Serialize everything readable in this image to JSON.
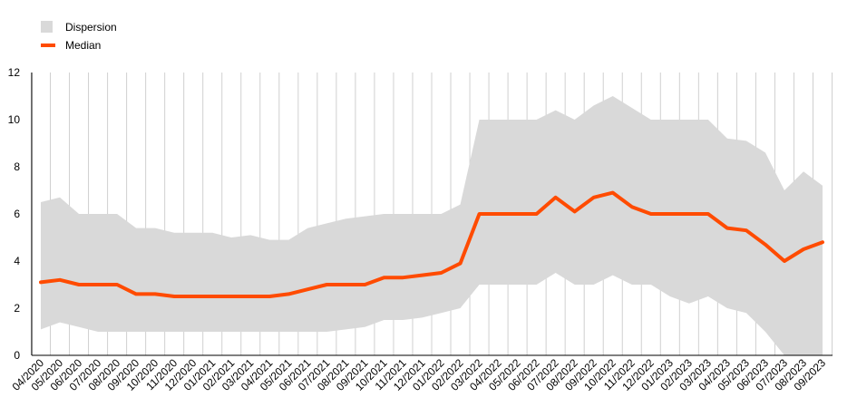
{
  "chart_data": {
    "type": "area",
    "title": "",
    "xlabel": "",
    "ylabel": "",
    "ylim": [
      0,
      12
    ],
    "yticks": [
      0,
      2,
      4,
      6,
      8,
      10,
      12
    ],
    "grid": "vertical",
    "legend_position": "top-left",
    "categories": [
      "04/2020",
      "05/2020",
      "06/2020",
      "07/2020",
      "08/2020",
      "09/2020",
      "10/2020",
      "11/2020",
      "12/2020",
      "01/2021",
      "02/2021",
      "03/2021",
      "04/2021",
      "05/2021",
      "06/2021",
      "07/2021",
      "08/2021",
      "09/2021",
      "10/2021",
      "11/2021",
      "12/2021",
      "01/2022",
      "02/2022",
      "03/2022",
      "04/2022",
      "05/2022",
      "06/2022",
      "07/2022",
      "08/2022",
      "09/2022",
      "10/2022",
      "11/2022",
      "12/2022",
      "01/2023",
      "02/2023",
      "03/2023",
      "04/2023",
      "05/2023",
      "06/2023",
      "07/2023",
      "08/2023",
      "09/2023"
    ],
    "series": [
      {
        "name": "Dispersion",
        "kind": "band",
        "color": "#d9d9d9",
        "upper": [
          6.5,
          6.7,
          6.0,
          6.0,
          6.0,
          5.4,
          5.4,
          5.2,
          5.2,
          5.2,
          5.0,
          5.1,
          4.9,
          4.9,
          5.4,
          5.6,
          5.8,
          5.9,
          6.0,
          6.0,
          6.0,
          6.0,
          6.4,
          10.0,
          10.0,
          10.0,
          10.0,
          10.4,
          10.0,
          10.6,
          11.0,
          10.5,
          10.0,
          10.0,
          10.0,
          10.0,
          9.2,
          9.1,
          8.6,
          7.0,
          7.8,
          7.2
        ],
        "lower": [
          1.1,
          1.4,
          1.2,
          1.0,
          1.0,
          1.0,
          1.0,
          1.0,
          1.0,
          1.0,
          1.0,
          1.0,
          1.0,
          1.0,
          1.0,
          1.0,
          1.1,
          1.2,
          1.5,
          1.5,
          1.6,
          1.8,
          2.0,
          3.0,
          3.0,
          3.0,
          3.0,
          3.5,
          3.0,
          3.0,
          3.4,
          3.0,
          3.0,
          2.5,
          2.2,
          2.5,
          2.0,
          1.8,
          1.0,
          0.0,
          0.0,
          0.0
        ]
      },
      {
        "name": "Median",
        "kind": "line",
        "color": "#ff4b00",
        "values": [
          3.1,
          3.2,
          3.0,
          3.0,
          3.0,
          2.6,
          2.6,
          2.5,
          2.5,
          2.5,
          2.5,
          2.5,
          2.5,
          2.6,
          2.8,
          3.0,
          3.0,
          3.0,
          3.3,
          3.3,
          3.4,
          3.5,
          3.9,
          6.0,
          6.0,
          6.0,
          6.0,
          6.7,
          6.1,
          6.7,
          6.9,
          6.3,
          6.0,
          6.0,
          6.0,
          6.0,
          5.4,
          5.3,
          4.7,
          4.0,
          4.5,
          4.8
        ]
      }
    ]
  }
}
